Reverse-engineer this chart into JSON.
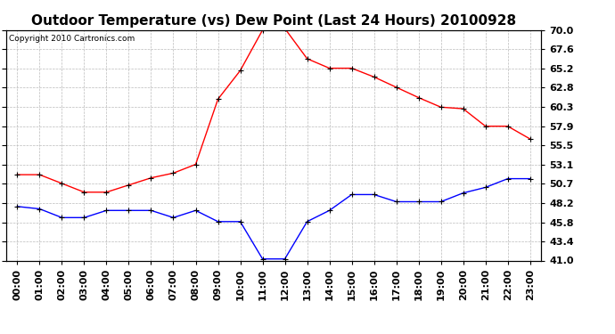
{
  "title": "Outdoor Temperature (vs) Dew Point (Last 24 Hours) 20100928",
  "copyright_text": "Copyright 2010 Cartronics.com",
  "x_labels": [
    "00:00",
    "01:00",
    "02:00",
    "03:00",
    "04:00",
    "05:00",
    "06:00",
    "07:00",
    "08:00",
    "09:00",
    "10:00",
    "11:00",
    "12:00",
    "13:00",
    "14:00",
    "15:00",
    "16:00",
    "17:00",
    "18:00",
    "19:00",
    "20:00",
    "21:00",
    "22:00",
    "23:00"
  ],
  "temp_red": [
    51.8,
    51.8,
    50.7,
    49.6,
    49.6,
    50.5,
    51.4,
    52.0,
    53.1,
    61.3,
    64.9,
    70.0,
    70.2,
    66.4,
    65.2,
    65.2,
    64.1,
    62.8,
    61.5,
    60.3,
    60.1,
    57.9,
    57.9,
    56.3
  ],
  "dew_blue": [
    47.8,
    47.5,
    46.4,
    46.4,
    47.3,
    47.3,
    47.3,
    46.4,
    47.3,
    45.9,
    45.9,
    41.2,
    41.2,
    45.9,
    47.3,
    49.3,
    49.3,
    48.4,
    48.4,
    48.4,
    49.5,
    50.2,
    51.3,
    51.3
  ],
  "ylim_min": 41.0,
  "ylim_max": 70.0,
  "yticks": [
    41.0,
    43.4,
    45.8,
    48.2,
    50.7,
    53.1,
    55.5,
    57.9,
    60.3,
    62.8,
    65.2,
    67.6,
    70.0
  ],
  "ytick_labels": [
    "41.0",
    "43.4",
    "45.8",
    "48.2",
    "50.7",
    "53.1",
    "55.5",
    "57.9",
    "60.3",
    "62.8",
    "65.2",
    "67.6",
    "70.0"
  ],
  "bg_color": "#ffffff",
  "grid_color": "#bbbbbb",
  "red_color": "#ff0000",
  "blue_color": "#0000ff",
  "title_fontsize": 11,
  "tick_label_fontsize": 8,
  "copyright_fontsize": 6.5
}
